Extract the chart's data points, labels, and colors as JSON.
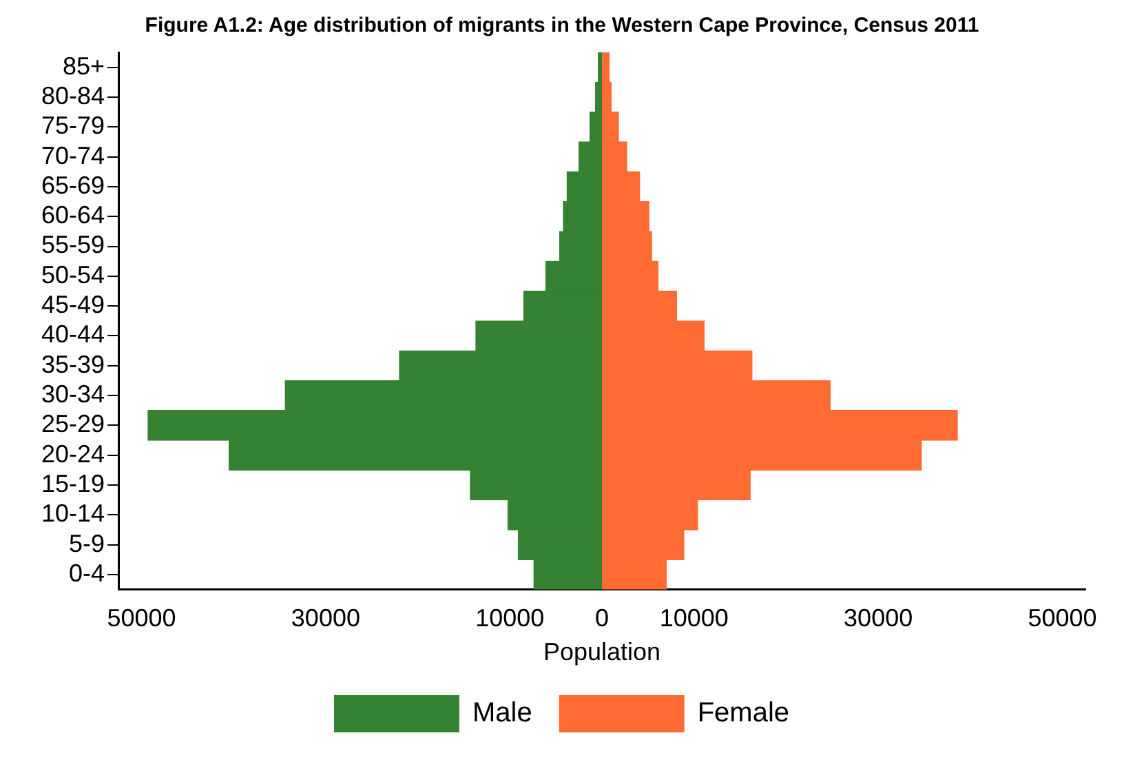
{
  "chart_data": {
    "type": "bar",
    "orientation": "horizontal",
    "stacked": true,
    "title": "Figure A1.2: Age distribution of migrants in the Western Cape Province, Census 2011",
    "xlabel": "Population",
    "categories": [
      "85+",
      "80-84",
      "75-79",
      "70-74",
      "65-69",
      "60-64",
      "55-59",
      "50-54",
      "45-49",
      "40-44",
      "35-39",
      "30-34",
      "25-29",
      "20-24",
      "15-19",
      "10-14",
      "5-9",
      "0-4"
    ],
    "series": [
      {
        "name": "Male",
        "color": "#358232",
        "values": [
          -400,
          -700,
          -1300,
          -2500,
          -3800,
          -4200,
          -4600,
          -6100,
          -8500,
          -13700,
          -22000,
          -34400,
          -49300,
          -40500,
          -14300,
          -10200,
          -9100,
          -7400
        ]
      },
      {
        "name": "Female",
        "color": "#ff6b33",
        "values": [
          800,
          1000,
          1800,
          2700,
          4100,
          5100,
          5400,
          6100,
          8100,
          11100,
          16300,
          24800,
          38600,
          34700,
          16100,
          10400,
          8900,
          7000
        ]
      }
    ],
    "xlim": [
      -52500,
      52500
    ],
    "xticks": [
      {
        "value": -50000,
        "label": "50000"
      },
      {
        "value": -30000,
        "label": "30000"
      },
      {
        "value": -10000,
        "label": "10000"
      },
      0,
      10000,
      30000,
      50000
    ],
    "grid": false,
    "legend": "bottom"
  }
}
